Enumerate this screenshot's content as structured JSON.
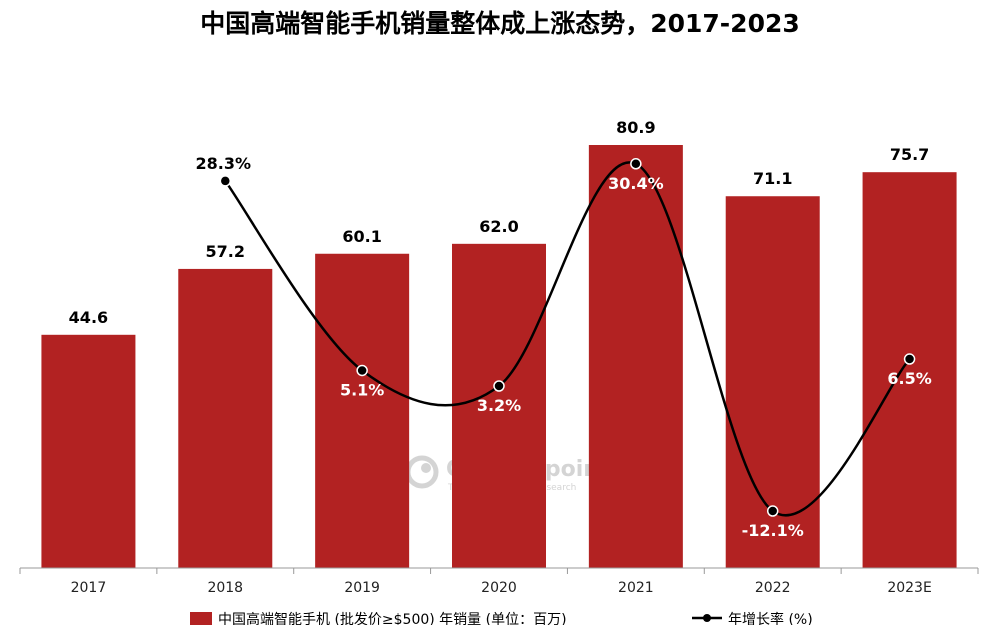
{
  "chart_data": {
    "type": "bar",
    "title": "中国高端智能手机销量整体成上涨态势，2017-2023",
    "categories": [
      "2017",
      "2018",
      "2019",
      "2020",
      "2021",
      "2022",
      "2023E"
    ],
    "series": [
      {
        "name": "中国高端智能手机 (批发价≥$500) 年销量 (单位：百万)",
        "type": "bar",
        "color": "#b22222",
        "values": [
          44.6,
          57.2,
          60.1,
          62.0,
          80.9,
          71.1,
          75.7
        ],
        "labels": [
          "44.6",
          "57.2",
          "60.1",
          "62.0",
          "80.9",
          "71.1",
          "75.7"
        ]
      },
      {
        "name": "年增长率 (%)",
        "type": "line",
        "color": "#000000",
        "values": [
          null,
          28.3,
          5.1,
          3.2,
          30.4,
          -12.1,
          6.5
        ],
        "labels": [
          "",
          "28.3%",
          "5.1%",
          "3.2%",
          "30.4%",
          "-12.1%",
          "6.5%"
        ]
      }
    ],
    "ylim": [
      0,
      90
    ],
    "y2lim": [
      -20,
      40
    ],
    "grid": false,
    "legend_position": "bottom",
    "watermark": {
      "brand": "Counterpoint",
      "tagline": "Technology Market Research"
    }
  }
}
